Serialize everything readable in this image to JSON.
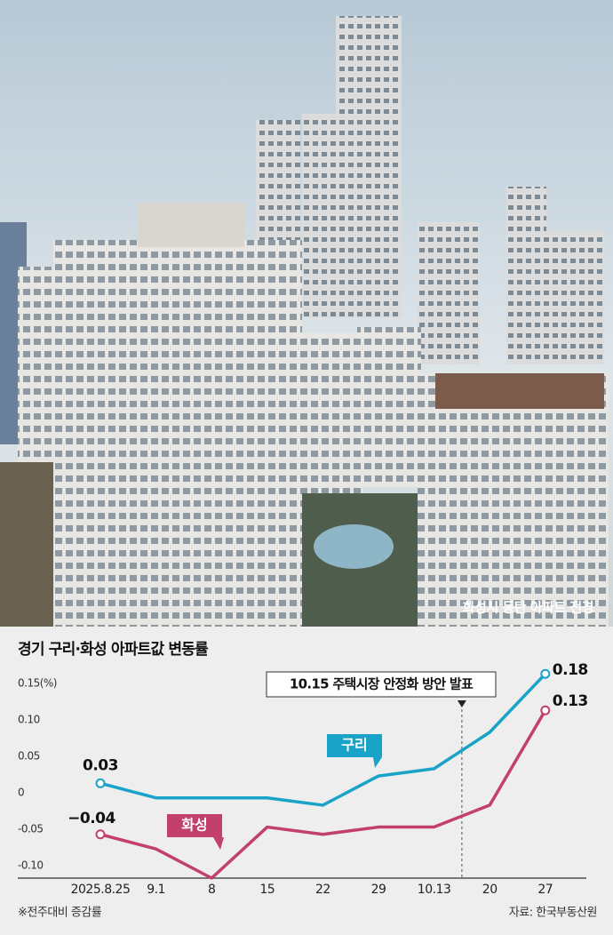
{
  "photo_caption": "화성시 동탄 아파트 전경",
  "chart_data": {
    "type": "line",
    "title": "경기 구리·화성 아파트값 변동률",
    "categories": [
      "2025.8.25",
      "9.1",
      "8",
      "15",
      "22",
      "29",
      "10.13",
      "20",
      "27"
    ],
    "series": [
      {
        "name": "구리",
        "color": "#1aa3c8",
        "values": [
          0.03,
          0.01,
          0.01,
          0.01,
          0.0,
          0.04,
          0.05,
          0.1,
          0.18
        ],
        "value_labels": [
          "0.03",
          null,
          null,
          null,
          null,
          null,
          null,
          null,
          "0.18"
        ]
      },
      {
        "name": "화성",
        "color": "#c23f6e",
        "values": [
          -0.04,
          -0.06,
          -0.1,
          -0.03,
          -0.04,
          -0.03,
          -0.03,
          0.0,
          0.13
        ],
        "value_labels": [
          "−0.04",
          null,
          null,
          null,
          null,
          null,
          null,
          null,
          "0.13"
        ]
      }
    ],
    "ylim": [
      -0.1,
      0.19
    ],
    "yticks": [
      {
        "value": 0.15,
        "label": "0.15(%)"
      },
      {
        "value": 0.1,
        "label": "0.10"
      },
      0.05,
      0,
      -0.05,
      {
        "value": -0.1,
        "label": "-0.10"
      }
    ],
    "annotation": "10.15 주택시장 안정화 방안 발표",
    "footnote": "※전주대비 증감률",
    "source": "자료: 한국부동산원"
  }
}
